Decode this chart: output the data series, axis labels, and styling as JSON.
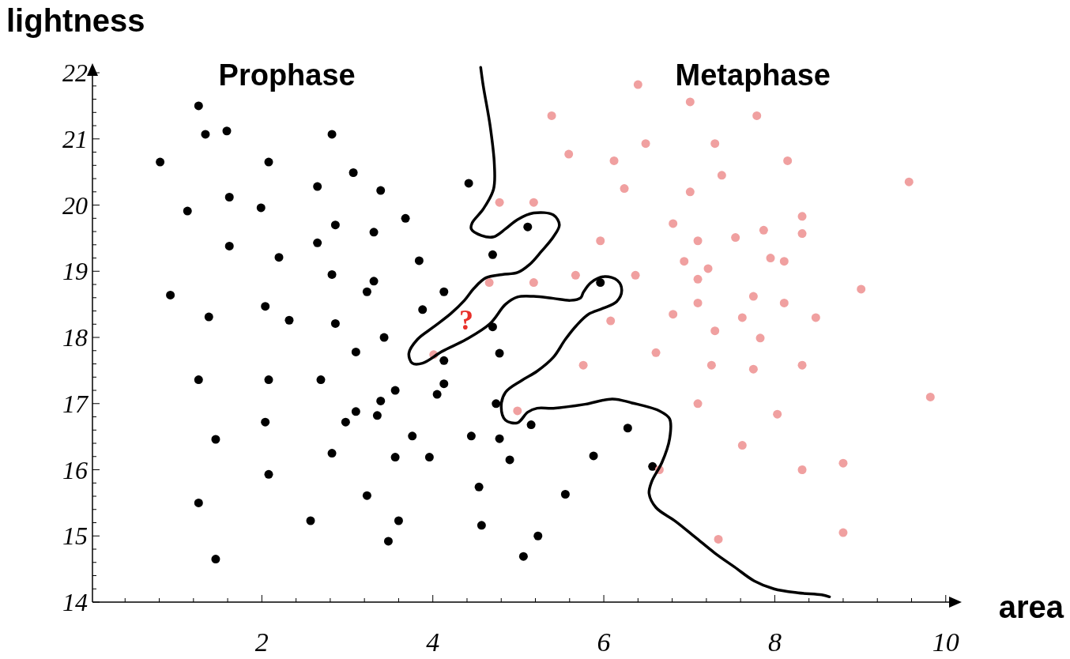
{
  "chart_data": {
    "type": "scatter",
    "xlabel": "area",
    "ylabel": "lightness",
    "xlim": [
      0,
      10.15
    ],
    "ylim": [
      14,
      22.12
    ],
    "xticks": [
      {
        "value": 0.4,
        "label": null
      },
      {
        "value": 0.8,
        "label": null
      },
      {
        "value": 1.2,
        "label": null
      },
      {
        "value": 1.6,
        "label": null
      },
      2,
      {
        "value": 2.4,
        "label": null
      },
      {
        "value": 2.8,
        "label": null
      },
      {
        "value": 3.2,
        "label": null
      },
      {
        "value": 3.6,
        "label": null
      },
      4,
      {
        "value": 4.4,
        "label": null
      },
      {
        "value": 4.8,
        "label": null
      },
      {
        "value": 5.2,
        "label": null
      },
      {
        "value": 5.6,
        "label": null
      },
      6,
      {
        "value": 6.4,
        "label": null
      },
      {
        "value": 6.8,
        "label": null
      },
      {
        "value": 7.2,
        "label": null
      },
      {
        "value": 7.6,
        "label": null
      },
      8,
      {
        "value": 8.4,
        "label": null
      },
      {
        "value": 8.8,
        "label": null
      },
      {
        "value": 9.2,
        "label": null
      },
      {
        "value": 9.6,
        "label": null
      },
      10
    ],
    "yticks": [
      14,
      {
        "value": 14.2,
        "label": null
      },
      {
        "value": 14.4,
        "label": null
      },
      {
        "value": 14.6,
        "label": null
      },
      {
        "value": 14.8,
        "label": null
      },
      15,
      {
        "value": 15.2,
        "label": null
      },
      {
        "value": 15.4,
        "label": null
      },
      {
        "value": 15.6,
        "label": null
      },
      {
        "value": 15.8,
        "label": null
      },
      16,
      {
        "value": 16.2,
        "label": null
      },
      {
        "value": 16.4,
        "label": null
      },
      {
        "value": 16.6,
        "label": null
      },
      {
        "value": 16.8,
        "label": null
      },
      17,
      {
        "value": 17.2,
        "label": null
      },
      {
        "value": 17.4,
        "label": null
      },
      {
        "value": 17.6,
        "label": null
      },
      {
        "value": 17.8,
        "label": null
      },
      18,
      {
        "value": 18.2,
        "label": null
      },
      {
        "value": 18.4,
        "label": null
      },
      {
        "value": 18.6,
        "label": null
      },
      {
        "value": 18.8,
        "label": null
      },
      19,
      {
        "value": 19.2,
        "label": null
      },
      {
        "value": 19.4,
        "label": null
      },
      {
        "value": 19.6,
        "label": null
      },
      {
        "value": 19.8,
        "label": null
      },
      20,
      {
        "value": 20.2,
        "label": null
      },
      {
        "value": 20.4,
        "label": null
      },
      {
        "value": 20.6,
        "label": null
      },
      {
        "value": 20.8,
        "label": null
      },
      21,
      {
        "value": 21.2,
        "label": null
      },
      {
        "value": 21.4,
        "label": null
      },
      {
        "value": 21.6,
        "label": null
      },
      {
        "value": 21.8,
        "label": null
      },
      22
    ],
    "marker": "circle",
    "grid": false,
    "annotations": [
      "?"
    ],
    "series": [
      {
        "name": "Prophase",
        "color": "#000000",
        "x": [
          1.26,
          1.34,
          1.59,
          2.82,
          0.81,
          2.08,
          3.07,
          2.65,
          3.39,
          4.42,
          1.62,
          1.13,
          1.99,
          3.68,
          2.86,
          3.31,
          1.62,
          2.65,
          2.2,
          3.84,
          2.82,
          3.31,
          3.23,
          4.13,
          0.93,
          3.88,
          2.04,
          1.38,
          2.32,
          2.86,
          3.43,
          3.1,
          4.13,
          1.26,
          2.08,
          2.69,
          4.13,
          3.56,
          4.05,
          3.39,
          3.1,
          3.35,
          2.04,
          2.98,
          1.46,
          3.76,
          4.45,
          2.82,
          3.56,
          3.96,
          2.08,
          1.26,
          3.23,
          2.57,
          3.6,
          3.48,
          1.46,
          5.11,
          4.7,
          5.96,
          4.7,
          4.78,
          4.74,
          5.15,
          4.78,
          6.28,
          4.9,
          5.88,
          6.57,
          4.54,
          5.55,
          4.57,
          5.23,
          5.06
        ],
        "values": [
          21.5,
          21.07,
          21.12,
          21.07,
          20.65,
          20.65,
          20.49,
          20.28,
          20.22,
          20.33,
          20.12,
          19.91,
          19.96,
          19.8,
          19.7,
          19.59,
          19.38,
          19.43,
          19.21,
          19.16,
          18.95,
          18.85,
          18.69,
          18.69,
          18.64,
          18.42,
          18.47,
          18.31,
          18.26,
          18.21,
          18.0,
          17.78,
          17.65,
          17.36,
          17.36,
          17.36,
          17.3,
          17.2,
          17.14,
          17.04,
          16.88,
          16.82,
          16.72,
          16.72,
          16.46,
          16.51,
          16.51,
          16.25,
          16.19,
          16.19,
          15.93,
          15.5,
          15.61,
          15.23,
          15.23,
          14.92,
          14.65,
          19.67,
          19.25,
          18.83,
          18.16,
          17.76,
          17.0,
          16.68,
          16.47,
          16.63,
          16.15,
          16.21,
          16.05,
          15.74,
          15.63,
          15.16,
          15.0,
          14.69
        ]
      },
      {
        "name": "Metaphase",
        "color": "#f0a0a0",
        "x": [
          6.4,
          7.01,
          5.39,
          7.79,
          6.49,
          7.3,
          5.59,
          6.12,
          8.15,
          7.38,
          9.57,
          6.24,
          7.01,
          4.78,
          5.18,
          8.32,
          6.81,
          8.32,
          7.87,
          7.54,
          7.1,
          5.96,
          6.94,
          7.95,
          8.11,
          7.22,
          7.1,
          4.66,
          5.18,
          5.67,
          6.37,
          9.01,
          7.75,
          7.1,
          8.11,
          6.81,
          7.62,
          8.48,
          6.08,
          7.3,
          7.83,
          6.61,
          5.76,
          7.26,
          7.75,
          8.32,
          9.82,
          7.1,
          4.99,
          8.03,
          7.62,
          8.8,
          6.65,
          8.32,
          7.34,
          8.8,
          4.01
        ],
        "values": [
          21.82,
          21.56,
          21.35,
          21.35,
          20.93,
          20.93,
          20.77,
          20.67,
          20.67,
          20.45,
          20.35,
          20.25,
          20.2,
          20.04,
          20.04,
          19.83,
          19.72,
          19.57,
          19.62,
          19.51,
          19.46,
          19.46,
          19.15,
          19.2,
          19.15,
          19.04,
          18.88,
          18.83,
          18.83,
          18.94,
          18.94,
          18.73,
          18.62,
          18.52,
          18.52,
          18.35,
          18.3,
          18.3,
          18.25,
          18.1,
          17.99,
          17.77,
          17.58,
          17.58,
          17.52,
          17.58,
          17.1,
          17.0,
          16.89,
          16.84,
          16.37,
          16.1,
          16.0,
          16.0,
          14.95,
          15.05,
          17.74
        ]
      },
      {
        "type": "line",
        "color": "#000000",
        "marker": "none",
        "line_style": "solid",
        "x": [
          4.56,
          4.59,
          4.67,
          4.72,
          4.71,
          4.59,
          4.46,
          4.45,
          4.57,
          4.71,
          4.85,
          4.99,
          5.18,
          5.41,
          5.48,
          5.41,
          5.27,
          5.13,
          4.99,
          4.81,
          4.62,
          4.48,
          4.37,
          4.21,
          4.0,
          3.82,
          3.72,
          3.76,
          3.88,
          4.11,
          4.39,
          4.67,
          4.85,
          4.99,
          5.18,
          5.41,
          5.61,
          5.73,
          5.76,
          5.85,
          6.01,
          6.16,
          6.21,
          6.15,
          5.99,
          5.82,
          5.68,
          5.55,
          5.41,
          5.22,
          5.04,
          4.85,
          4.8,
          4.85,
          4.99,
          5.11,
          5.22,
          5.41,
          5.78,
          6.1,
          6.33,
          6.65,
          6.77,
          6.77,
          6.68,
          6.56,
          6.53,
          6.61,
          6.84,
          7.07,
          7.3,
          7.53,
          7.76,
          7.99,
          8.27,
          8.55,
          8.64
        ],
        "values": [
          22.08,
          21.8,
          21.2,
          20.61,
          20.24,
          19.94,
          19.73,
          19.64,
          19.54,
          19.52,
          19.64,
          19.78,
          19.88,
          19.85,
          19.7,
          19.52,
          19.3,
          19.1,
          18.98,
          18.95,
          18.9,
          18.74,
          18.56,
          18.36,
          18.15,
          17.97,
          17.76,
          17.61,
          17.61,
          17.79,
          17.97,
          18.21,
          18.5,
          18.61,
          18.62,
          18.59,
          18.56,
          18.6,
          18.68,
          18.83,
          18.92,
          18.86,
          18.71,
          18.54,
          18.44,
          18.35,
          18.18,
          17.97,
          17.7,
          17.49,
          17.35,
          17.17,
          16.95,
          16.75,
          16.71,
          16.87,
          16.93,
          16.93,
          16.99,
          17.07,
          17.01,
          16.89,
          16.77,
          16.47,
          16.11,
          15.82,
          15.64,
          15.43,
          15.22,
          14.98,
          14.74,
          14.53,
          14.32,
          14.2,
          14.14,
          14.11,
          14.08
        ]
      }
    ]
  }
}
